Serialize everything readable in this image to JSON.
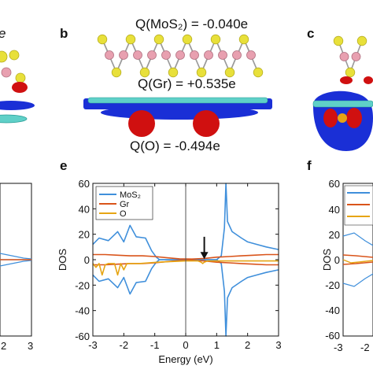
{
  "panels": {
    "b": {
      "label": "b",
      "q_mos2": "Q(MoS₂) = -0.040e",
      "q_gr": "Q(Gr) = +0.535e",
      "q_o": "Q(O) = -0.494e"
    },
    "c": {
      "label": "c"
    },
    "e": {
      "label": "e"
    },
    "f": {
      "label": "f"
    },
    "d": {
      "partial_label": "e"
    }
  },
  "colors": {
    "mos2": "#3f8fdb",
    "gr": "#d9541a",
    "o": "#e6a514",
    "sulfur": "#e8e03a",
    "molybdenum": "#e8a0b0",
    "carbon": "#5fd0c8",
    "oxygen": "#cc1111",
    "charge_blue": "#1a2fd6",
    "charge_red": "#d01010"
  },
  "chart_data": [
    {
      "panel": "e",
      "type": "line",
      "xlabel": "Energy (eV)",
      "ylabel": "DOS",
      "xlim": [
        -3,
        3
      ],
      "ylim": [
        -60,
        60
      ],
      "xticks": [
        -3,
        -2,
        -1,
        0,
        1,
        2,
        3
      ],
      "yticks": [
        -60,
        -40,
        -20,
        0,
        20,
        40,
        60
      ],
      "legend": {
        "placement": "top-left",
        "entries": [
          "MoS₂",
          "Gr",
          "O"
        ]
      },
      "annotations": [
        "arrow at E ≈ 0.6 eV"
      ],
      "series": [
        {
          "name": "MoS₂",
          "color": "#3f8fdb",
          "x": [
            -3.0,
            -2.8,
            -2.5,
            -2.2,
            -2.0,
            -1.8,
            -1.6,
            -1.3,
            -1.1,
            -0.95,
            -0.85,
            -0.5,
            0.0,
            0.5,
            0.8,
            1.0,
            1.15,
            1.25,
            1.3,
            1.35,
            1.5,
            1.8,
            2.0,
            2.3,
            2.6,
            3.0
          ],
          "y": [
            12,
            17,
            15,
            22,
            14,
            27,
            18,
            17,
            7,
            2,
            0,
            0,
            0,
            0,
            0,
            0,
            3,
            25,
            60,
            30,
            22,
            17,
            14,
            12,
            10,
            8
          ]
        },
        {
          "name": "MoS₂",
          "color": "#3f8fdb",
          "x": [
            -3.0,
            -2.8,
            -2.5,
            -2.2,
            -2.0,
            -1.8,
            -1.6,
            -1.3,
            -1.1,
            -0.95,
            -0.85,
            -0.5,
            0.0,
            0.5,
            0.8,
            1.0,
            1.15,
            1.25,
            1.3,
            1.35,
            1.5,
            1.8,
            2.0,
            2.3,
            2.6,
            3.0
          ],
          "y": [
            -12,
            -17,
            -15,
            -22,
            -14,
            -27,
            -18,
            -17,
            -7,
            -2,
            0,
            0,
            0,
            0,
            0,
            0,
            -3,
            -25,
            -60,
            -30,
            -22,
            -17,
            -14,
            -12,
            -10,
            -8
          ]
        },
        {
          "name": "Gr",
          "color": "#d9541a",
          "x": [
            -3.0,
            -2.6,
            -2.2,
            -1.8,
            -1.4,
            -1.0,
            -0.6,
            -0.2,
            0.2,
            0.6,
            1.0,
            1.4,
            1.8,
            2.2,
            2.6,
            3.0
          ],
          "y": [
            4,
            4,
            3.5,
            3,
            3,
            2.5,
            1.5,
            0.7,
            0.5,
            1,
            2,
            2.5,
            3,
            3.5,
            4,
            4
          ]
        },
        {
          "name": "Gr",
          "color": "#d9541a",
          "x": [
            -3.0,
            -2.6,
            -2.2,
            -1.8,
            -1.4,
            -1.0,
            -0.6,
            -0.2,
            0.2,
            0.6,
            1.0,
            1.4,
            1.8,
            2.2,
            2.6,
            3.0
          ],
          "y": [
            -4,
            -4,
            -3.5,
            -3,
            -3,
            -2.5,
            -1.5,
            -0.7,
            -0.5,
            -1,
            -2,
            -2.5,
            -3,
            -3.5,
            -4,
            -4
          ]
        },
        {
          "name": "O",
          "color": "#e6a514",
          "x": [
            -3.0,
            -2.9,
            -2.8,
            -2.7,
            -2.6,
            -2.5,
            -2.3,
            -2.2,
            -2.1,
            -2.0,
            -1.9,
            -1.7,
            -1.5,
            -1.2,
            -0.9,
            -0.5,
            0.0,
            0.4,
            0.5,
            0.55,
            0.6,
            0.7,
            1.0,
            1.5,
            2.0,
            2.5,
            3.0
          ],
          "y": [
            -3,
            -6,
            -3,
            -12,
            -4,
            -3,
            -3,
            -12,
            -3,
            -8,
            -3,
            -3,
            -3,
            -2.5,
            -2,
            -1.5,
            -1,
            -1,
            -2,
            -3,
            -2,
            -1,
            -1,
            -1,
            -1,
            -1,
            -1
          ]
        }
      ]
    }
  ]
}
